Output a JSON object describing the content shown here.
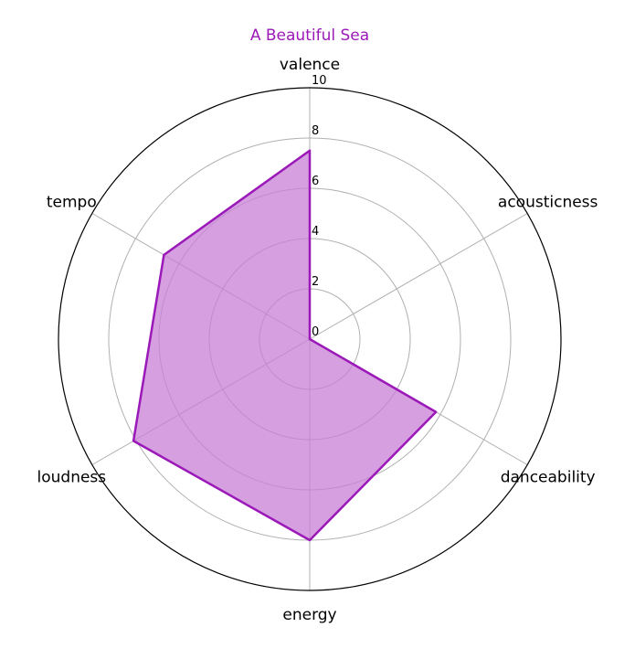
{
  "chart_data": {
    "type": "radar",
    "title": "A Beautiful Sea",
    "title_color": "#9b19b8",
    "series_color": "#9b19b8",
    "fill_color": "#c77fd6",
    "categories": [
      "valence",
      "acousticness",
      "danceability",
      "energy",
      "loudness",
      "tempo"
    ],
    "series": [
      {
        "name": "A Beautiful Sea",
        "values": [
          7.5,
          0.0,
          5.8,
          8.0,
          8.1,
          6.7
        ]
      }
    ],
    "rlim": [
      0,
      10
    ],
    "rticks": [
      0,
      2,
      4,
      6,
      8,
      10
    ],
    "rtick_labels": [
      "0",
      "2",
      "4",
      "6",
      "8",
      "10"
    ],
    "grid": true
  }
}
